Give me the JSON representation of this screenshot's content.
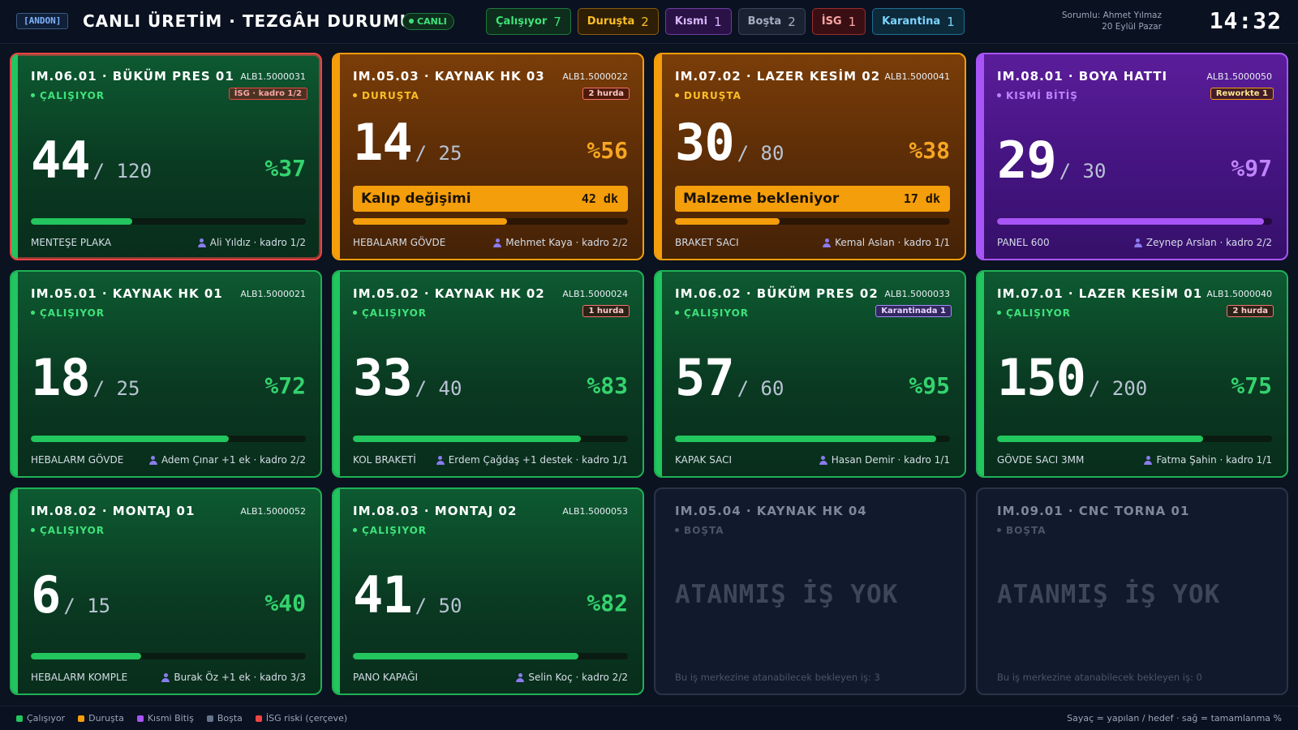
{
  "header": {
    "andon_badge": "[ANDON]",
    "title": "CANLI ÜRETİM · TEZGÂH DURUMU",
    "live_label": "CANLI",
    "responsible": "Sorumlu: Ahmet Yılmaz",
    "date": "20 Eylül Pazar",
    "clock": "14:32"
  },
  "counts": [
    {
      "label": "Çalışıyor",
      "value": "7",
      "color": "#3ee27a",
      "bg": "#0f2d1c",
      "border": "#1f7a3f"
    },
    {
      "label": "Duruşta",
      "value": "2",
      "color": "#fbbf24",
      "bg": "#2e1e06",
      "border": "#8a5d10"
    },
    {
      "label": "Kısmi",
      "value": "1",
      "color": "#d8b4fe",
      "bg": "#2a1246",
      "border": "#6b3fa0"
    },
    {
      "label": "Boşta",
      "value": "2",
      "color": "#a5afbf",
      "bg": "#1a2232",
      "border": "#3a4558"
    },
    {
      "label": "İSG",
      "value": "1",
      "color": "#fca5a5",
      "bg": "#3a0f14",
      "border": "#9b2c2c"
    },
    {
      "label": "Karantina",
      "value": "1",
      "color": "#7dd3fc",
      "bg": "#0c2a3a",
      "border": "#1f6f94"
    }
  ],
  "cards": [
    {
      "state": "run",
      "isg": true,
      "title": "IM.06.01 · BÜKÜM PRES 01",
      "order": "ALB1.5000031",
      "status": "ÇALIŞIYOR",
      "tag": "İSG · kadro 1/2",
      "tag_type": "isg",
      "done": "44",
      "target": "/ 120",
      "pct": "%37",
      "progress": 37,
      "product": "MENTEŞE PLAKA",
      "person": "Ali Yıldız · kadro 1/2"
    },
    {
      "state": "down",
      "isg": false,
      "title": "IM.05.03 · KAYNAK HK 03",
      "order": "ALB1.5000022",
      "status": "DURUŞTA",
      "tag": "2 hurda",
      "tag_type": "scrap",
      "done": "14",
      "target": "/ 25",
      "pct": "%56",
      "progress": 56,
      "reason": "Kalıp değişimi",
      "reason_time": "42 dk",
      "product": "HEBALARM GÖVDE",
      "person": "Mehmet Kaya · kadro 2/2"
    },
    {
      "state": "down",
      "isg": false,
      "title": "IM.07.02 · LAZER KESİM 02",
      "order": "ALB1.5000041",
      "status": "DURUŞTA",
      "tag": "",
      "tag_type": "",
      "done": "30",
      "target": "/ 80",
      "pct": "%38",
      "progress": 38,
      "reason": "Malzeme bekleniyor",
      "reason_time": "17 dk",
      "product": "BRAKET SACI",
      "person": "Kemal Aslan · kadro 1/1"
    },
    {
      "state": "partial",
      "isg": false,
      "title": "IM.08.01 · BOYA HATTI",
      "order": "ALB1.5000050",
      "status": "KISMİ BİTİŞ",
      "tag": "Reworkte 1",
      "tag_type": "rework",
      "done": "29",
      "target": "/ 30",
      "pct": "%97",
      "progress": 97,
      "product": "PANEL 600",
      "person": "Zeynep Arslan · kadro 2/2"
    },
    {
      "state": "run",
      "isg": false,
      "title": "IM.05.01 · KAYNAK HK 01",
      "order": "ALB1.5000021",
      "status": "ÇALIŞIYOR",
      "tag": "",
      "tag_type": "",
      "done": "18",
      "target": "/ 25",
      "pct": "%72",
      "progress": 72,
      "product": "HEBALARM GÖVDE",
      "person": "Adem Çınar +1 ek · kadro 2/2"
    },
    {
      "state": "run",
      "isg": false,
      "title": "IM.05.02 · KAYNAK HK 02",
      "order": "ALB1.5000024",
      "status": "ÇALIŞIYOR",
      "tag": "1 hurda",
      "tag_type": "scrap",
      "done": "33",
      "target": "/ 40",
      "pct": "%83",
      "progress": 83,
      "product": "KOL BRAKETİ",
      "person": "Erdem Çağdaş +1 destek · kadro 1/1"
    },
    {
      "state": "run",
      "isg": false,
      "title": "IM.06.02 · BÜKÜM PRES 02",
      "order": "ALB1.5000033",
      "status": "ÇALIŞIYOR",
      "tag": "Karantinada 1",
      "tag_type": "quar",
      "done": "57",
      "target": "/ 60",
      "pct": "%95",
      "progress": 95,
      "product": "KAPAK SACI",
      "person": "Hasan Demir · kadro 1/1"
    },
    {
      "state": "run",
      "isg": false,
      "title": "IM.07.01 · LAZER KESİM 01",
      "order": "ALB1.5000040",
      "status": "ÇALIŞIYOR",
      "tag": "2 hurda",
      "tag_type": "scrap",
      "done": "150",
      "target": "/ 200",
      "pct": "%75",
      "progress": 75,
      "product": "GÖVDE SACI 3MM",
      "person": "Fatma Şahin · kadro 1/1"
    },
    {
      "state": "run",
      "isg": false,
      "title": "IM.08.02 · MONTAJ 01",
      "order": "ALB1.5000052",
      "status": "ÇALIŞIYOR",
      "tag": "",
      "tag_type": "",
      "done": "6",
      "target": "/ 15",
      "pct": "%40",
      "progress": 40,
      "product": "HEBALARM KOMPLE",
      "person": "Burak Öz +1 ek · kadro 3/3"
    },
    {
      "state": "run",
      "isg": false,
      "title": "IM.08.03 · MONTAJ 02",
      "order": "ALB1.5000053",
      "status": "ÇALIŞIYOR",
      "tag": "",
      "tag_type": "",
      "done": "41",
      "target": "/ 50",
      "pct": "%82",
      "progress": 82,
      "product": "PANO KAPAĞI",
      "person": "Selin Koç · kadro 2/2"
    },
    {
      "state": "idle",
      "isg": false,
      "title": "IM.05.04 · KAYNAK HK 04",
      "status": "BOŞTA",
      "empty": "ATANMIŞ İŞ YOK",
      "pending": "Bu iş merkezine atanabilecek bekleyen iş: 3"
    },
    {
      "state": "idle",
      "isg": false,
      "title": "IM.09.01 · CNC TORNA 01",
      "status": "BOŞTA",
      "empty": "ATANMIŞ İŞ YOK",
      "pending": "Bu iş merkezine atanabilecek bekleyen iş: 0"
    }
  ],
  "legend": {
    "items": [
      {
        "label": "Çalışıyor",
        "color": "#22c55e"
      },
      {
        "label": "Duruşta",
        "color": "#f59e0b"
      },
      {
        "label": "Kısmi Bitiş",
        "color": "#a855f7"
      },
      {
        "label": "Boşta",
        "color": "#64748b"
      },
      {
        "label": "İSG riski (çerçeve)",
        "color": "#ef4444"
      }
    ],
    "note": "Sayaç = yapılan / hedef · sağ = tamamlanma %"
  }
}
